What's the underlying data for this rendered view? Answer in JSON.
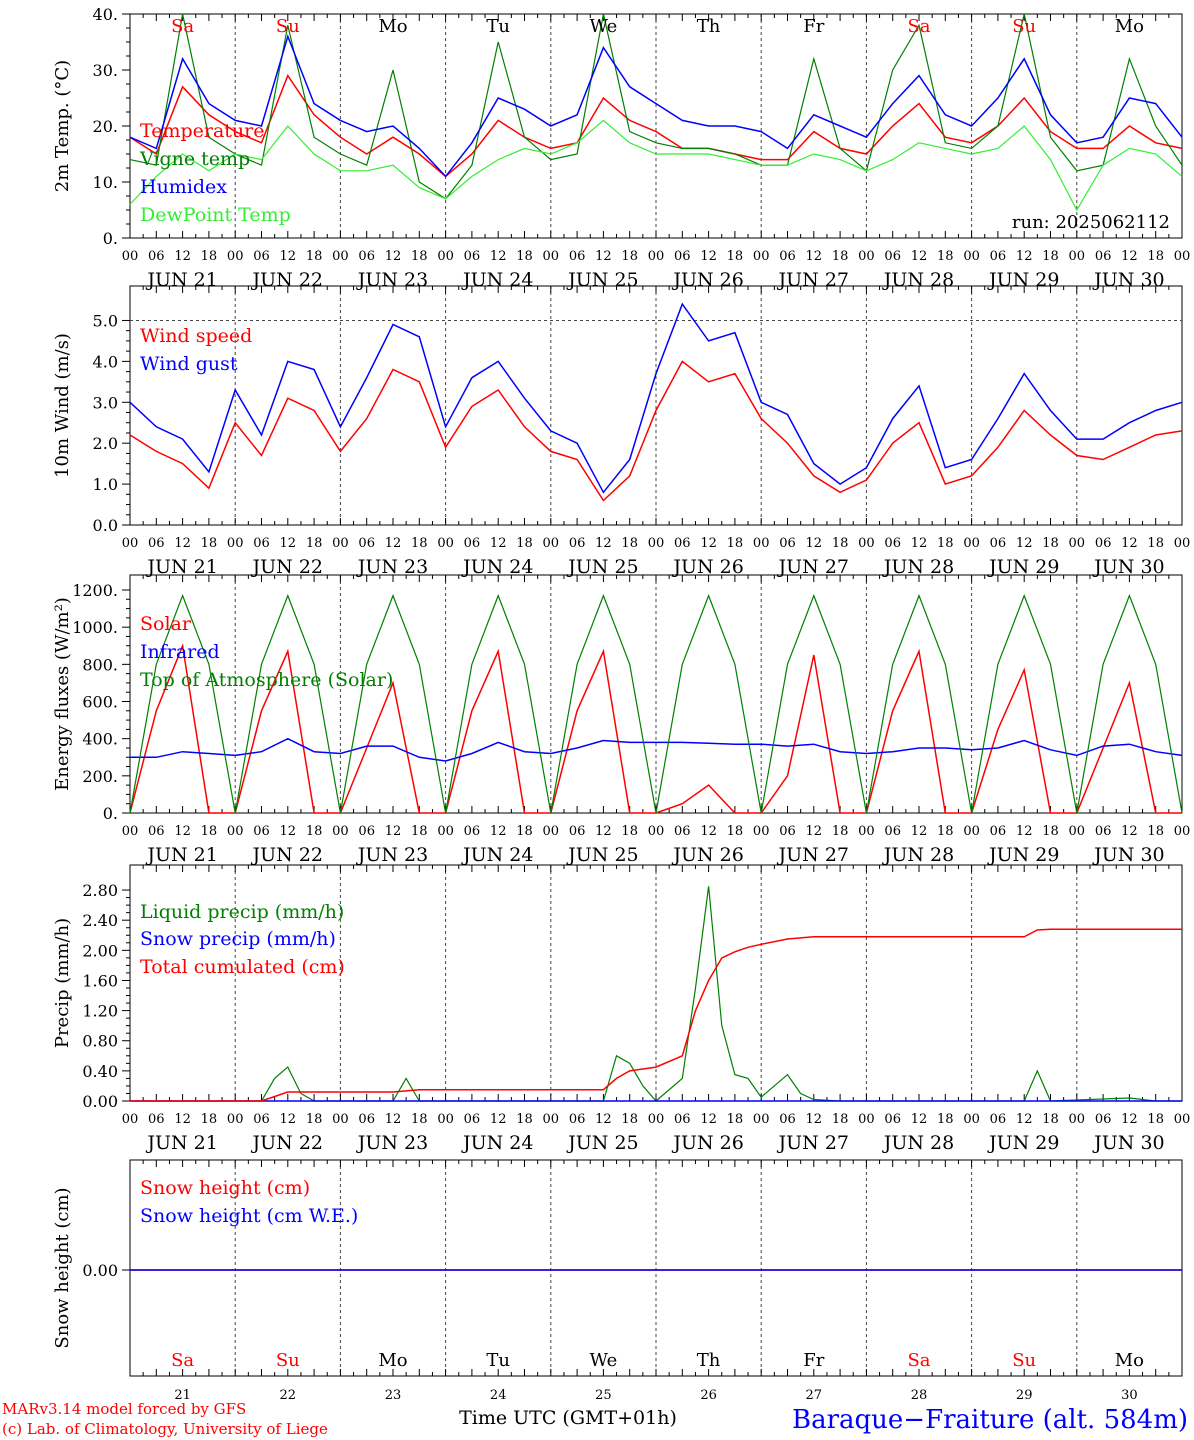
{
  "run_label": "run: 2025062112",
  "footer": {
    "model_line": "MARv3.14 model forced by GFS",
    "copyright_line": "(c) Lab. of Climatology, University of Liege",
    "xlabel": "Time UTC (GMT+01h)",
    "station": "Baraque−Fraiture (alt. 584m)"
  },
  "colors": {
    "red": "#ff0000",
    "green": "#008000",
    "blue": "#0000ff",
    "lightgreen": "#33ee33",
    "grid": "#444444"
  },
  "days": [
    {
      "dow": "Sa",
      "date": "JUN 21",
      "short": "21",
      "weekend": true
    },
    {
      "dow": "Su",
      "date": "JUN 22",
      "short": "22",
      "weekend": true
    },
    {
      "dow": "Mo",
      "date": "JUN 23",
      "short": "23",
      "weekend": false
    },
    {
      "dow": "Tu",
      "date": "JUN 24",
      "short": "24",
      "weekend": false
    },
    {
      "dow": "We",
      "date": "JUN 25",
      "short": "25",
      "weekend": false
    },
    {
      "dow": "Th",
      "date": "JUN 26",
      "short": "26",
      "weekend": false
    },
    {
      "dow": "Fr",
      "date": "JUN 27",
      "short": "27",
      "weekend": false
    },
    {
      "dow": "Sa",
      "date": "JUN 28",
      "short": "28",
      "weekend": true
    },
    {
      "dow": "Su",
      "date": "JUN 29",
      "short": "29",
      "weekend": true
    },
    {
      "dow": "Mo",
      "date": "JUN 30",
      "short": "30",
      "weekend": false
    }
  ],
  "hour_ticks": [
    "00",
    "06",
    "12",
    "18"
  ],
  "chart_data": [
    {
      "type": "line",
      "ylabel": "2m Temp. (°C)",
      "ylim": [
        0,
        40
      ],
      "yticks": [
        "0.",
        "10.",
        "20.",
        "30.",
        "40."
      ],
      "xunit": "hours since JUN 21 00 UTC",
      "series": [
        {
          "name": "Temperature",
          "color": "red",
          "x": [
            0,
            6,
            12,
            18,
            24,
            30,
            36,
            42,
            48,
            54,
            60,
            66,
            72,
            78,
            84,
            90,
            96,
            102,
            108,
            114,
            120,
            126,
            132,
            138,
            144,
            150,
            156,
            162,
            168,
            174,
            180,
            186,
            192,
            198,
            204,
            210,
            216,
            222,
            228,
            234,
            240
          ],
          "values": [
            18,
            15,
            27,
            22,
            19,
            17,
            29,
            22,
            18,
            15,
            18,
            15,
            11,
            15,
            21,
            18,
            16,
            17,
            25,
            21,
            19,
            16,
            16,
            15,
            14,
            14,
            19,
            16,
            15,
            20,
            24,
            18,
            17,
            20,
            25,
            19,
            16,
            16,
            20,
            17,
            16
          ]
        },
        {
          "name": "Vigne temp",
          "color": "green",
          "x": [
            0,
            6,
            12,
            18,
            24,
            30,
            36,
            42,
            48,
            54,
            60,
            66,
            72,
            78,
            84,
            90,
            96,
            102,
            108,
            114,
            120,
            126,
            132,
            138,
            144,
            150,
            156,
            162,
            168,
            174,
            180,
            186,
            192,
            198,
            204,
            210,
            216,
            222,
            228,
            234,
            240
          ],
          "values": [
            14,
            13,
            40,
            18,
            15,
            13,
            38,
            18,
            15,
            13,
            30,
            10,
            7,
            13,
            35,
            18,
            14,
            15,
            40,
            19,
            17,
            16,
            16,
            15,
            13,
            13,
            32,
            16,
            12,
            30,
            38,
            17,
            16,
            20,
            40,
            18,
            12,
            13,
            32,
            20,
            13
          ]
        },
        {
          "name": "Humidex",
          "color": "blue",
          "x": [
            0,
            6,
            12,
            18,
            24,
            30,
            36,
            42,
            48,
            54,
            60,
            66,
            72,
            78,
            84,
            90,
            96,
            102,
            108,
            114,
            120,
            126,
            132,
            138,
            144,
            150,
            156,
            162,
            168,
            174,
            180,
            186,
            192,
            198,
            204,
            210,
            216,
            222,
            228,
            234,
            240
          ],
          "values": [
            18,
            16,
            32,
            24,
            21,
            20,
            36,
            24,
            21,
            19,
            20,
            16,
            11,
            17,
            25,
            23,
            20,
            22,
            34,
            27,
            24,
            21,
            20,
            20,
            19,
            16,
            22,
            20,
            18,
            24,
            29,
            22,
            20,
            25,
            32,
            22,
            17,
            18,
            25,
            24,
            18
          ]
        },
        {
          "name": "DewPoint Temp",
          "color": "lightgreen",
          "x": [
            0,
            6,
            12,
            18,
            24,
            30,
            36,
            42,
            48,
            54,
            60,
            66,
            72,
            78,
            84,
            90,
            96,
            102,
            108,
            114,
            120,
            126,
            132,
            138,
            144,
            150,
            156,
            162,
            168,
            174,
            180,
            186,
            192,
            198,
            204,
            210,
            216,
            222,
            228,
            234,
            240
          ],
          "values": [
            6,
            11,
            15,
            12,
            15,
            14,
            20,
            15,
            12,
            12,
            13,
            9,
            7,
            11,
            14,
            16,
            15,
            17,
            21,
            17,
            15,
            15,
            15,
            14,
            13,
            13,
            15,
            14,
            12,
            14,
            17,
            16,
            15,
            16,
            20,
            14,
            5,
            13,
            16,
            15,
            11
          ]
        }
      ]
    },
    {
      "type": "line",
      "ylabel": "10m Wind (m/s)",
      "ylim": [
        0,
        5.5
      ],
      "yticks": [
        "0.0",
        "1.0",
        "2.0",
        "3.0",
        "4.0",
        "5.0"
      ],
      "xunit": "hours since JUN 21 00 UTC",
      "series": [
        {
          "name": "Wind speed",
          "color": "red",
          "x": [
            0,
            6,
            12,
            18,
            24,
            30,
            36,
            42,
            48,
            54,
            60,
            66,
            72,
            78,
            84,
            90,
            96,
            102,
            108,
            114,
            120,
            126,
            132,
            138,
            144,
            150,
            156,
            162,
            168,
            174,
            180,
            186,
            192,
            198,
            204,
            210,
            216,
            222,
            228,
            234,
            240
          ],
          "values": [
            2.2,
            1.8,
            1.5,
            0.9,
            2.5,
            1.7,
            3.1,
            2.8,
            1.8,
            2.6,
            3.8,
            3.5,
            1.9,
            2.9,
            3.3,
            2.4,
            1.8,
            1.6,
            0.6,
            1.2,
            2.8,
            4.0,
            3.5,
            3.7,
            2.6,
            2.0,
            1.2,
            0.8,
            1.1,
            2.0,
            2.5,
            1.0,
            1.2,
            1.9,
            2.8,
            2.2,
            1.7,
            1.6,
            1.9,
            2.2,
            2.3
          ]
        },
        {
          "name": "Wind gust",
          "color": "blue",
          "x": [
            0,
            6,
            12,
            18,
            24,
            30,
            36,
            42,
            48,
            54,
            60,
            66,
            72,
            78,
            84,
            90,
            96,
            102,
            108,
            114,
            120,
            126,
            132,
            138,
            144,
            150,
            156,
            162,
            168,
            174,
            180,
            186,
            192,
            198,
            204,
            210,
            216,
            222,
            228,
            234,
            240
          ],
          "values": [
            3.0,
            2.4,
            2.1,
            1.3,
            3.3,
            2.2,
            4.0,
            3.8,
            2.4,
            3.6,
            4.9,
            4.6,
            2.4,
            3.6,
            4.0,
            3.1,
            2.3,
            2.0,
            0.8,
            1.6,
            3.7,
            5.4,
            4.5,
            4.7,
            3.0,
            2.7,
            1.5,
            1.0,
            1.4,
            2.6,
            3.4,
            1.4,
            1.6,
            2.6,
            3.7,
            2.8,
            2.1,
            2.1,
            2.5,
            2.8,
            3.0
          ]
        }
      ]
    },
    {
      "type": "line",
      "ylabel": "Energy fluxes (W/m²)",
      "ylim": [
        0,
        1200
      ],
      "yticks": [
        "0.",
        "200.",
        "400.",
        "600.",
        "800.",
        "1000.",
        "1200."
      ],
      "xunit": "hours since JUN 21 00 UTC",
      "series": [
        {
          "name": "Solar",
          "color": "red",
          "x": [
            0,
            6,
            12,
            18,
            24,
            30,
            36,
            42,
            48,
            54,
            60,
            66,
            72,
            78,
            84,
            90,
            96,
            102,
            108,
            114,
            120,
            126,
            132,
            138,
            144,
            150,
            156,
            162,
            168,
            174,
            180,
            186,
            192,
            198,
            204,
            210,
            216,
            222,
            228,
            234,
            240
          ],
          "values": [
            0,
            550,
            900,
            0,
            0,
            550,
            870,
            0,
            0,
            350,
            700,
            0,
            0,
            550,
            870,
            0,
            0,
            550,
            870,
            0,
            0,
            50,
            150,
            0,
            0,
            200,
            850,
            0,
            0,
            550,
            870,
            0,
            0,
            450,
            770,
            0,
            0,
            350,
            700,
            0,
            0
          ]
        },
        {
          "name": "Infrared",
          "color": "blue",
          "x": [
            0,
            6,
            12,
            18,
            24,
            30,
            36,
            42,
            48,
            54,
            60,
            66,
            72,
            78,
            84,
            90,
            96,
            102,
            108,
            114,
            120,
            126,
            132,
            138,
            144,
            150,
            156,
            162,
            168,
            174,
            180,
            186,
            192,
            198,
            204,
            210,
            216,
            222,
            228,
            234,
            240
          ],
          "values": [
            300,
            300,
            330,
            320,
            310,
            330,
            400,
            330,
            320,
            360,
            360,
            300,
            280,
            320,
            380,
            330,
            320,
            350,
            390,
            380,
            380,
            380,
            375,
            370,
            370,
            360,
            370,
            330,
            320,
            330,
            350,
            350,
            340,
            350,
            390,
            340,
            310,
            360,
            370,
            330,
            310
          ]
        },
        {
          "name": "Top of Atmosphere (Solar)",
          "color": "green",
          "x": [
            0,
            6,
            12,
            18,
            24,
            30,
            36,
            42,
            48,
            54,
            60,
            66,
            72,
            78,
            84,
            90,
            96,
            102,
            108,
            114,
            120,
            126,
            132,
            138,
            144,
            150,
            156,
            162,
            168,
            174,
            180,
            186,
            192,
            198,
            204,
            210,
            216,
            222,
            228,
            234,
            240
          ],
          "values": [
            0,
            800,
            1170,
            800,
            0,
            800,
            1170,
            800,
            0,
            800,
            1170,
            800,
            0,
            800,
            1170,
            800,
            0,
            800,
            1170,
            800,
            0,
            800,
            1170,
            800,
            0,
            800,
            1170,
            800,
            0,
            800,
            1170,
            800,
            0,
            800,
            1170,
            800,
            0,
            800,
            1170,
            800,
            0
          ]
        }
      ]
    },
    {
      "type": "line",
      "ylabel": "Precip (mm/h)",
      "ylim": [
        0,
        2.96
      ],
      "yticks": [
        "0.00",
        "0.40",
        "0.80",
        "1.20",
        "1.60",
        "2.00",
        "2.40",
        "2.80"
      ],
      "xunit": "hours since JUN 21 00 UTC",
      "series": [
        {
          "name": "Liquid precip (mm/h)",
          "color": "green",
          "x": [
            0,
            30,
            33,
            36,
            39,
            42,
            60,
            63,
            66,
            108,
            111,
            114,
            117,
            120,
            126,
            129,
            132,
            135,
            138,
            141,
            144,
            150,
            153,
            156,
            162,
            204,
            207,
            210,
            228,
            234,
            240
          ],
          "values": [
            0,
            0,
            0.3,
            0.45,
            0.1,
            0,
            0,
            0.3,
            0,
            0,
            0.6,
            0.5,
            0.2,
            0,
            0.3,
            1.5,
            2.85,
            1.0,
            0.35,
            0.3,
            0.05,
            0.35,
            0.1,
            0.02,
            0,
            0,
            0.4,
            0,
            0.04,
            0,
            0
          ]
        },
        {
          "name": "Snow precip (mm/h)",
          "color": "blue",
          "x": [
            0,
            240
          ],
          "values": [
            0,
            0
          ]
        },
        {
          "name": "Total cumulated (cm)",
          "color": "red",
          "x": [
            0,
            30,
            36,
            60,
            66,
            108,
            111,
            114,
            120,
            126,
            129,
            132,
            135,
            138,
            141,
            144,
            150,
            156,
            162,
            168,
            204,
            207,
            210,
            240
          ],
          "values": [
            0,
            0,
            0.12,
            0.12,
            0.15,
            0.15,
            0.3,
            0.4,
            0.45,
            0.6,
            1.2,
            1.6,
            1.9,
            1.98,
            2.04,
            2.08,
            2.15,
            2.18,
            2.18,
            2.18,
            2.18,
            2.27,
            2.28,
            2.28
          ]
        }
      ]
    },
    {
      "type": "line",
      "ylabel": "Snow height (cm)",
      "ylim": [
        -1,
        1
      ],
      "yticks": [
        "0.00"
      ],
      "xunit": "hours since JUN 21 00 UTC",
      "series": [
        {
          "name": "Snow height (cm)",
          "color": "red",
          "x": [
            0,
            240
          ],
          "values": [
            0,
            0
          ]
        },
        {
          "name": "Snow height (cm W.E.)",
          "color": "blue",
          "x": [
            0,
            240
          ],
          "values": [
            0,
            0
          ]
        }
      ]
    }
  ]
}
